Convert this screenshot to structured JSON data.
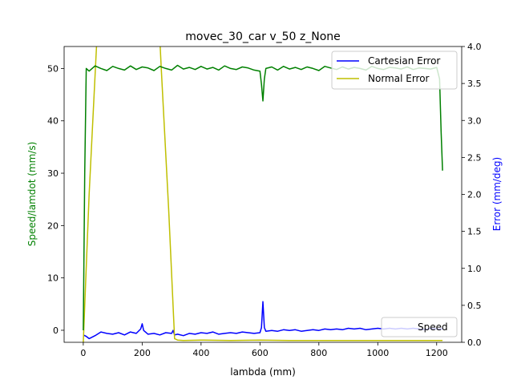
{
  "chart_data": {
    "type": "line",
    "title": "movec_30_car v_50 z_None",
    "xlabel": "lambda (mm)",
    "ylabel_left": "Speed/lamdot (mm/s)",
    "ylabel_right": "Error (mm/deg)",
    "xlim": [
      -65,
      1285
    ],
    "ylim_left": [
      -2.3,
      54.2
    ],
    "ylim_right": [
      0.0,
      4.0
    ],
    "x_ticks": [
      0,
      200,
      400,
      600,
      800,
      1000,
      1200
    ],
    "x_tick_labels": [
      "0",
      "200",
      "400",
      "600",
      "800",
      "1000",
      "1200"
    ],
    "y_left_ticks": [
      0,
      10,
      20,
      30,
      40,
      50
    ],
    "y_left_tick_labels": [
      "0",
      "10",
      "20",
      "30",
      "40",
      "50"
    ],
    "y_right_ticks": [
      0.0,
      0.5,
      1.0,
      1.5,
      2.0,
      2.5,
      3.0,
      3.5,
      4.0
    ],
    "y_right_tick_labels": [
      "0.0",
      "0.5",
      "1.0",
      "1.5",
      "2.0",
      "2.5",
      "3.0",
      "3.5",
      "4.0"
    ],
    "grid": false,
    "colors": {
      "speed": "#008000",
      "cartesian": "#0000ff",
      "normal": "#bfbf00",
      "left_label": "#008000",
      "right_label": "#0000ff"
    },
    "series": [
      {
        "name": "Speed",
        "axis": "left",
        "x": [
          0,
          5,
          10,
          20,
          40,
          60,
          80,
          100,
          120,
          140,
          160,
          180,
          200,
          220,
          240,
          260,
          280,
          300,
          320,
          340,
          360,
          380,
          400,
          420,
          440,
          460,
          480,
          500,
          520,
          540,
          560,
          580,
          600,
          605,
          610,
          615,
          620,
          640,
          660,
          680,
          700,
          720,
          740,
          760,
          780,
          800,
          820,
          840,
          860,
          880,
          900,
          920,
          940,
          960,
          980,
          1000,
          1020,
          1040,
          1060,
          1080,
          1100,
          1120,
          1140,
          1160,
          1180,
          1200,
          1210,
          1215,
          1220
        ],
        "y": [
          0,
          30,
          50,
          49.5,
          50.5,
          50,
          49.6,
          50.4,
          50,
          49.7,
          50.5,
          49.8,
          50.3,
          50.1,
          49.6,
          50.4,
          50,
          49.7,
          50.6,
          49.9,
          50.2,
          49.8,
          50.4,
          49.9,
          50.2,
          49.7,
          50.5,
          50,
          49.8,
          50.3,
          50.1,
          49.7,
          49.5,
          47,
          43.8,
          48,
          50,
          50.3,
          49.7,
          50.4,
          49.9,
          50.2,
          49.8,
          50.3,
          50,
          49.6,
          50.4,
          50.1,
          49.8,
          50.3,
          49.9,
          50.2,
          50,
          49.7,
          50.4,
          50,
          49.8,
          50.2,
          50.1,
          49.9,
          50.3,
          49.8,
          50.1,
          50,
          49.9,
          50.2,
          48,
          38,
          30.5
        ]
      },
      {
        "name": "Cartesian Error",
        "axis": "right",
        "x": [
          0,
          10,
          20,
          40,
          60,
          80,
          100,
          120,
          140,
          160,
          180,
          195,
          200,
          205,
          220,
          240,
          260,
          280,
          300,
          305,
          310,
          320,
          340,
          360,
          380,
          400,
          420,
          440,
          460,
          480,
          500,
          520,
          540,
          560,
          580,
          600,
          605,
          610,
          615,
          620,
          640,
          660,
          680,
          700,
          720,
          740,
          760,
          780,
          800,
          820,
          840,
          860,
          880,
          900,
          920,
          940,
          960,
          980,
          1000,
          1020,
          1040,
          1060,
          1080,
          1100,
          1120,
          1140,
          1160,
          1180,
          1200,
          1220
        ],
        "y": [
          0.1,
          0.08,
          0.05,
          0.09,
          0.14,
          0.12,
          0.11,
          0.13,
          0.1,
          0.14,
          0.12,
          0.18,
          0.25,
          0.16,
          0.11,
          0.12,
          0.1,
          0.13,
          0.12,
          0.16,
          0.1,
          0.11,
          0.09,
          0.12,
          0.11,
          0.13,
          0.12,
          0.14,
          0.11,
          0.12,
          0.13,
          0.12,
          0.14,
          0.13,
          0.12,
          0.13,
          0.2,
          0.55,
          0.2,
          0.15,
          0.16,
          0.15,
          0.17,
          0.16,
          0.17,
          0.15,
          0.16,
          0.17,
          0.16,
          0.18,
          0.17,
          0.18,
          0.17,
          0.19,
          0.18,
          0.19,
          0.17,
          0.18,
          0.19,
          0.18,
          0.19,
          0.18,
          0.19,
          0.18,
          0.19,
          0.18,
          0.17,
          0.19,
          0.18,
          0.18
        ]
      },
      {
        "name": "Normal Error",
        "axis": "right",
        "x": [
          0,
          20,
          45,
          50,
          260,
          265,
          290,
          310,
          320,
          340,
          400,
          500,
          600,
          700,
          800,
          900,
          1000,
          1100,
          1200,
          1220
        ],
        "y": [
          0.0,
          2.0,
          4.0,
          4.1,
          4.1,
          3.7,
          1.8,
          0.05,
          0.03,
          0.025,
          0.03,
          0.025,
          0.03,
          0.025,
          0.025,
          0.025,
          0.025,
          0.025,
          0.025,
          0.025
        ]
      }
    ],
    "legend": {
      "placement": "upper right",
      "entries": [
        "Cartesian Error",
        "Normal Error"
      ]
    },
    "legend2": {
      "placement": "lower right",
      "entries": [
        "Speed"
      ]
    }
  }
}
